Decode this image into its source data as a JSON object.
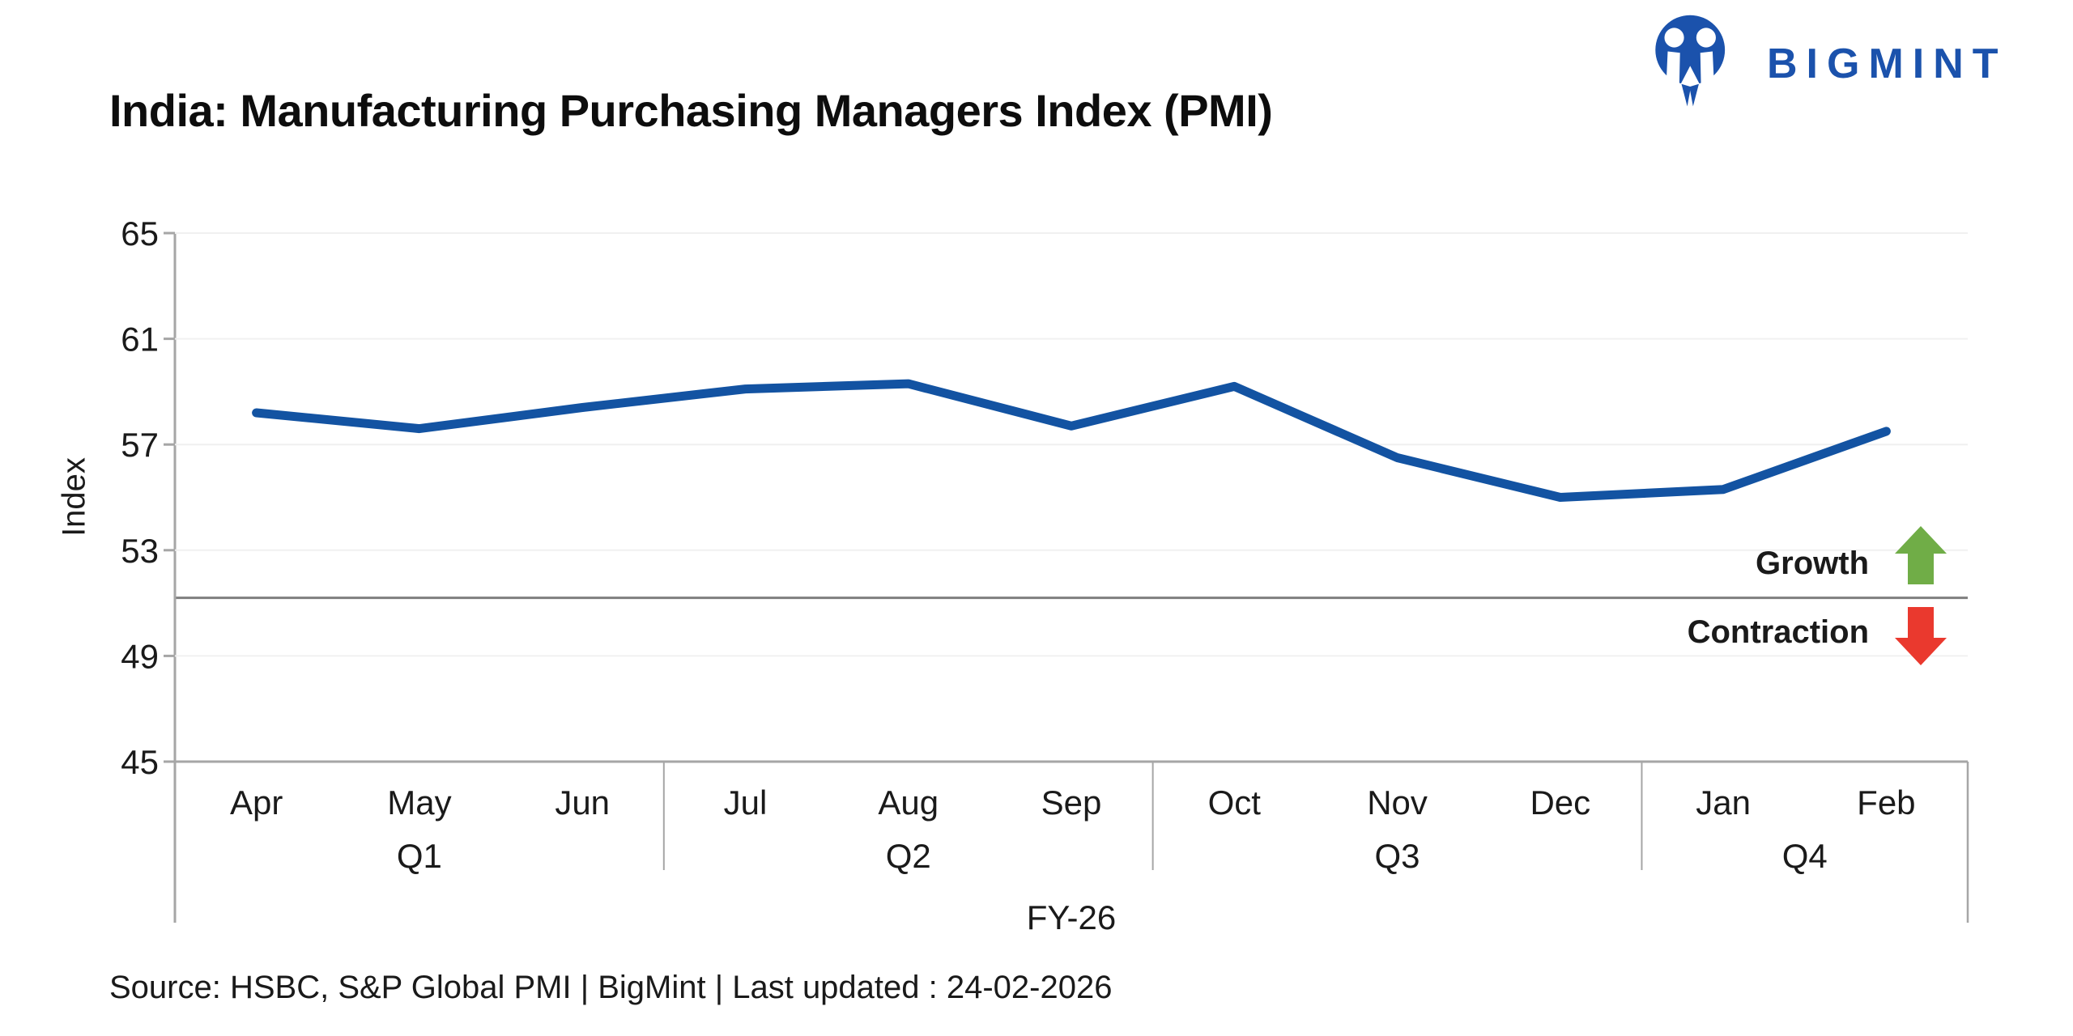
{
  "header": {
    "title": "India: Manufacturing Purchasing Managers Index (PMI)"
  },
  "logo": {
    "text": "BIGMINT",
    "brand_color": "#1B52AC"
  },
  "annotations": {
    "growth_label": "Growth",
    "contraction_label": "Contraction",
    "growth_arrow_color": "#70AD47",
    "contraction_arrow_color": "#EA392E"
  },
  "chart_data": {
    "type": "line",
    "title": "India: Manufacturing Purchasing Managers Index (PMI)",
    "ylabel": "Index",
    "xlabel": "FY-26",
    "categories": [
      "Apr",
      "May",
      "Jun",
      "Jul",
      "Aug",
      "Sep",
      "Oct",
      "Nov",
      "Dec",
      "Jan",
      "Feb"
    ],
    "quarters": [
      {
        "label": "Q1",
        "months": [
          "Apr",
          "May",
          "Jun"
        ]
      },
      {
        "label": "Q2",
        "months": [
          "Jul",
          "Aug",
          "Sep"
        ]
      },
      {
        "label": "Q3",
        "months": [
          "Oct",
          "Nov",
          "Dec"
        ]
      },
      {
        "label": "Q4",
        "months": [
          "Jan",
          "Feb"
        ]
      }
    ],
    "series": [
      {
        "name": "Manufacturing PMI",
        "color": "#1353A2",
        "values": [
          58.2,
          57.6,
          58.4,
          59.1,
          59.3,
          57.7,
          59.2,
          56.5,
          55.0,
          55.3,
          57.5
        ]
      }
    ],
    "ylim": [
      45,
      65
    ],
    "yticks": [
      45,
      49,
      53,
      57,
      61,
      65
    ],
    "grid": true,
    "legend_position": "none",
    "reference_line": {
      "value": 51.2,
      "color": "#7F7F7F"
    }
  },
  "footer": {
    "source_note": "Source: HSBC, S&P Global PMI | BigMint | Last updated : 24-02-2026"
  }
}
